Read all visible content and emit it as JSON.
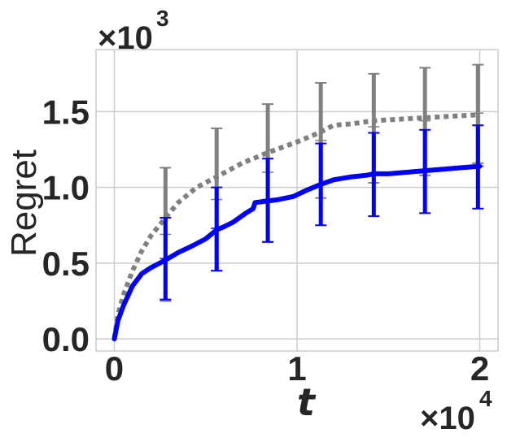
{
  "chart_data": {
    "type": "line",
    "xlabel": "t",
    "ylabel": "Regret",
    "x_multiplier_base": "×10",
    "x_multiplier_exp": "4",
    "y_multiplier_base": "×10",
    "y_multiplier_exp": "3",
    "xlim": [
      -0.1,
      2.1
    ],
    "ylim": [
      -0.08,
      1.91
    ],
    "x_ticks": [
      0,
      1,
      2
    ],
    "x_tick_labels": [
      "0",
      "1",
      "2"
    ],
    "y_ticks": [
      0,
      0.5,
      1.0,
      1.5
    ],
    "y_tick_labels": [
      "0.0",
      "0.5",
      "1.0",
      "1.5"
    ],
    "grid": true,
    "series": [
      {
        "color": "#808080",
        "style": "dotted",
        "x": [
          0,
          0.02,
          0.05,
          0.1,
          0.15,
          0.2,
          0.28,
          0.35,
          0.45,
          0.56,
          0.7,
          0.84,
          1.0,
          1.12,
          1.2,
          1.3,
          1.42,
          1.55,
          1.7,
          1.85,
          2.0
        ],
        "y": [
          0,
          0.16,
          0.29,
          0.45,
          0.58,
          0.68,
          0.8,
          0.9,
          1.0,
          1.07,
          1.16,
          1.23,
          1.3,
          1.36,
          1.41,
          1.42,
          1.44,
          1.45,
          1.46,
          1.47,
          1.48
        ],
        "errorbars": {
          "x": [
            0.28,
            0.56,
            0.84,
            1.13,
            1.42,
            1.7,
            1.99
          ],
          "center": [
            0.69,
            0.92,
            1.1,
            1.31,
            1.4,
            1.44,
            1.49
          ],
          "lower": [
            0.25,
            0.45,
            0.64,
            0.93,
            1.03,
            1.08,
            1.16
          ],
          "upper": [
            1.13,
            1.39,
            1.55,
            1.69,
            1.75,
            1.79,
            1.81
          ]
        }
      },
      {
        "color": "#0000ff",
        "style": "solid",
        "x": [
          0,
          0.02,
          0.05,
          0.1,
          0.15,
          0.2,
          0.28,
          0.35,
          0.42,
          0.5,
          0.56,
          0.6,
          0.65,
          0.72,
          0.76,
          0.77,
          0.84,
          0.9,
          0.98,
          1.05,
          1.13,
          1.2,
          1.3,
          1.38,
          1.42,
          1.5,
          1.6,
          1.7,
          1.8,
          1.9,
          2.0
        ],
        "y": [
          0,
          0.12,
          0.22,
          0.35,
          0.43,
          0.47,
          0.52,
          0.57,
          0.61,
          0.66,
          0.72,
          0.74,
          0.77,
          0.83,
          0.86,
          0.9,
          0.91,
          0.92,
          0.94,
          0.98,
          1.02,
          1.05,
          1.07,
          1.08,
          1.09,
          1.09,
          1.1,
          1.11,
          1.12,
          1.13,
          1.14
        ],
        "errorbars": {
          "x": [
            0.28,
            0.56,
            0.84,
            1.13,
            1.42,
            1.7,
            1.99
          ],
          "center": [
            0.53,
            0.73,
            0.92,
            1.02,
            1.09,
            1.11,
            1.14
          ],
          "lower": [
            0.26,
            0.45,
            0.64,
            0.75,
            0.81,
            0.83,
            0.86
          ],
          "upper": [
            0.8,
            1.0,
            1.19,
            1.29,
            1.36,
            1.38,
            1.41
          ]
        }
      }
    ]
  }
}
